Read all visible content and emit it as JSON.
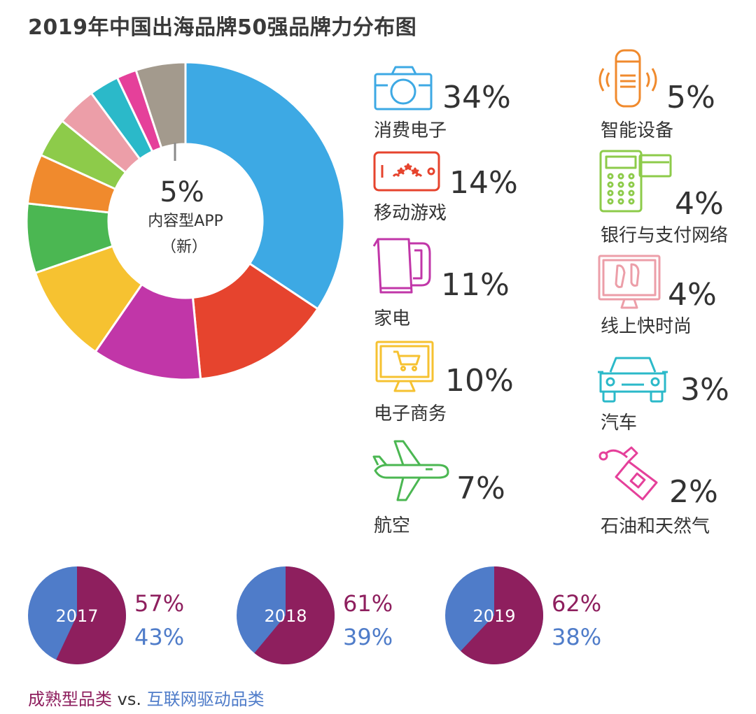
{
  "title": "2019年中国出海品牌50强品牌力分布图",
  "colors": {
    "mature": "#8e1f5e",
    "internet": "#4f7cc9"
  },
  "chart_data": [
    {
      "type": "pie",
      "title": "2019年中国出海品牌50强品牌力分布图",
      "center_label": {
        "pct": "5%",
        "line1": "内容型APP",
        "line2": "（新）"
      },
      "slices": [
        {
          "label": "消费电子",
          "value": 34,
          "pct_text": "34%",
          "color": "#3da9e4",
          "icon": "camera-icon"
        },
        {
          "label": "移动游戏",
          "value": 14,
          "pct_text": "14%",
          "color": "#e6442e",
          "icon": "phone-game-icon"
        },
        {
          "label": "家电",
          "value": 11,
          "pct_text": "11%",
          "color": "#c136a8",
          "icon": "kettle-icon"
        },
        {
          "label": "电子商务",
          "value": 10,
          "pct_text": "10%",
          "color": "#f6c231",
          "icon": "cart-monitor-icon"
        },
        {
          "label": "航空",
          "value": 7,
          "pct_text": "7%",
          "color": "#4bb752",
          "icon": "airplane-icon"
        },
        {
          "label": "智能设备",
          "value": 5,
          "pct_text": "5%",
          "color": "#f08a2d",
          "icon": "smart-speaker-icon"
        },
        {
          "label": "银行与支付网络",
          "value": 4,
          "pct_text": "4%",
          "color": "#8dcb4a",
          "icon": "pos-terminal-icon"
        },
        {
          "label": "线上快时尚",
          "value": 4,
          "pct_text": "4%",
          "color": "#ec9ea8",
          "icon": "fashion-monitor-icon"
        },
        {
          "label": "汽车",
          "value": 3,
          "pct_text": "3%",
          "color": "#2bb9c9",
          "icon": "car-icon"
        },
        {
          "label": "石油和天然气",
          "value": 2,
          "pct_text": "2%",
          "color": "#e5409a",
          "icon": "fuel-pump-icon"
        },
        {
          "label": "内容型APP（新）",
          "value": 5,
          "pct_text": "5%",
          "color": "#a39a8d",
          "icon": ""
        }
      ]
    },
    {
      "type": "pie",
      "series": [
        {
          "name": "成熟型品类",
          "color": "#8e1f5e"
        },
        {
          "name": "互联网驱动品类",
          "color": "#4f7cc9"
        }
      ],
      "pies": [
        {
          "year": "2017",
          "mature": 57,
          "internet": 43,
          "mature_text": "57%",
          "internet_text": "43%"
        },
        {
          "year": "2018",
          "mature": 61,
          "internet": 39,
          "mature_text": "61%",
          "internet_text": "39%"
        },
        {
          "year": "2019",
          "mature": 62,
          "internet": 38,
          "mature_text": "62%",
          "internet_text": "38%"
        }
      ]
    }
  ],
  "footer": {
    "mature": "成熟型品类",
    "vs": " vs. ",
    "internet": "互联网驱动品类"
  }
}
